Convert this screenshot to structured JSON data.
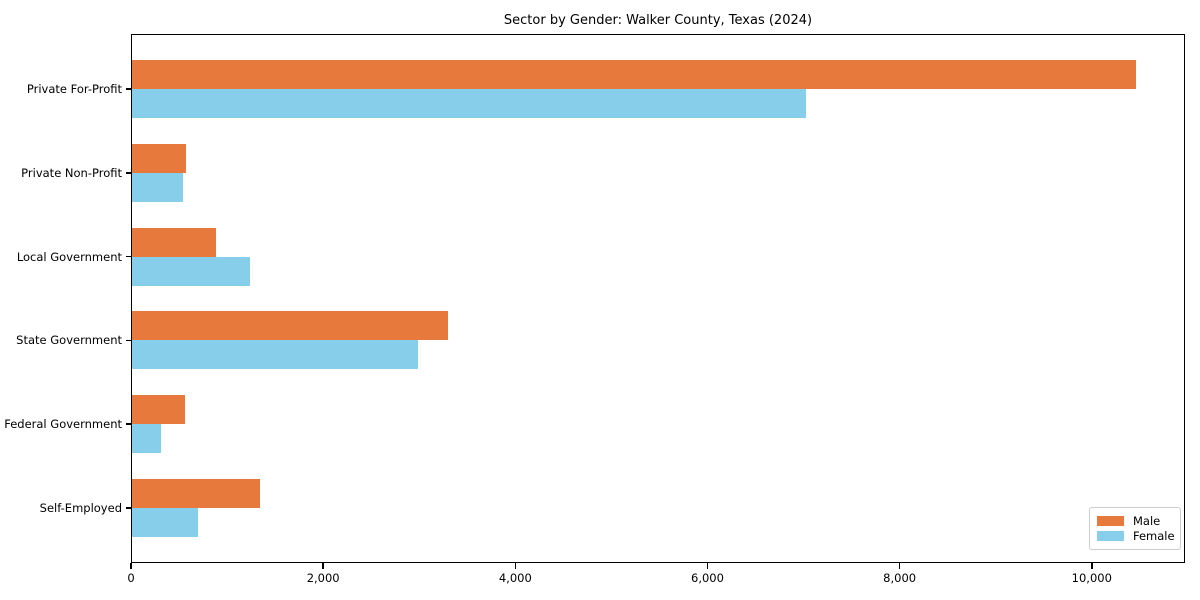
{
  "title": "Sector by Gender: Walker County, Texas (2024)",
  "chart_data": {
    "type": "bar",
    "orientation": "horizontal",
    "title": "Sector by Gender: Walker County, Texas (2024)",
    "xlabel": "",
    "ylabel": "",
    "categories": [
      "Private For-Profit",
      "Private Non-Profit",
      "Local Government",
      "State Government",
      "Federal Government",
      "Self-Employed"
    ],
    "series": [
      {
        "name": "Male",
        "color": "#E8793D",
        "values": [
          10450,
          565,
          870,
          3290,
          555,
          1335
        ]
      },
      {
        "name": "Female",
        "color": "#87CEEB",
        "values": [
          7010,
          535,
          1230,
          2975,
          300,
          685
        ]
      }
    ],
    "xlim": [
      0,
      10970
    ],
    "x_ticks": [
      0,
      2000,
      4000,
      6000,
      8000,
      10000
    ],
    "x_tick_labels": [
      "0",
      "2,000",
      "4,000",
      "6,000",
      "8,000",
      "10,000"
    ],
    "grid": false,
    "legend": {
      "position": "lower right",
      "entries": [
        "Male",
        "Female"
      ]
    }
  }
}
